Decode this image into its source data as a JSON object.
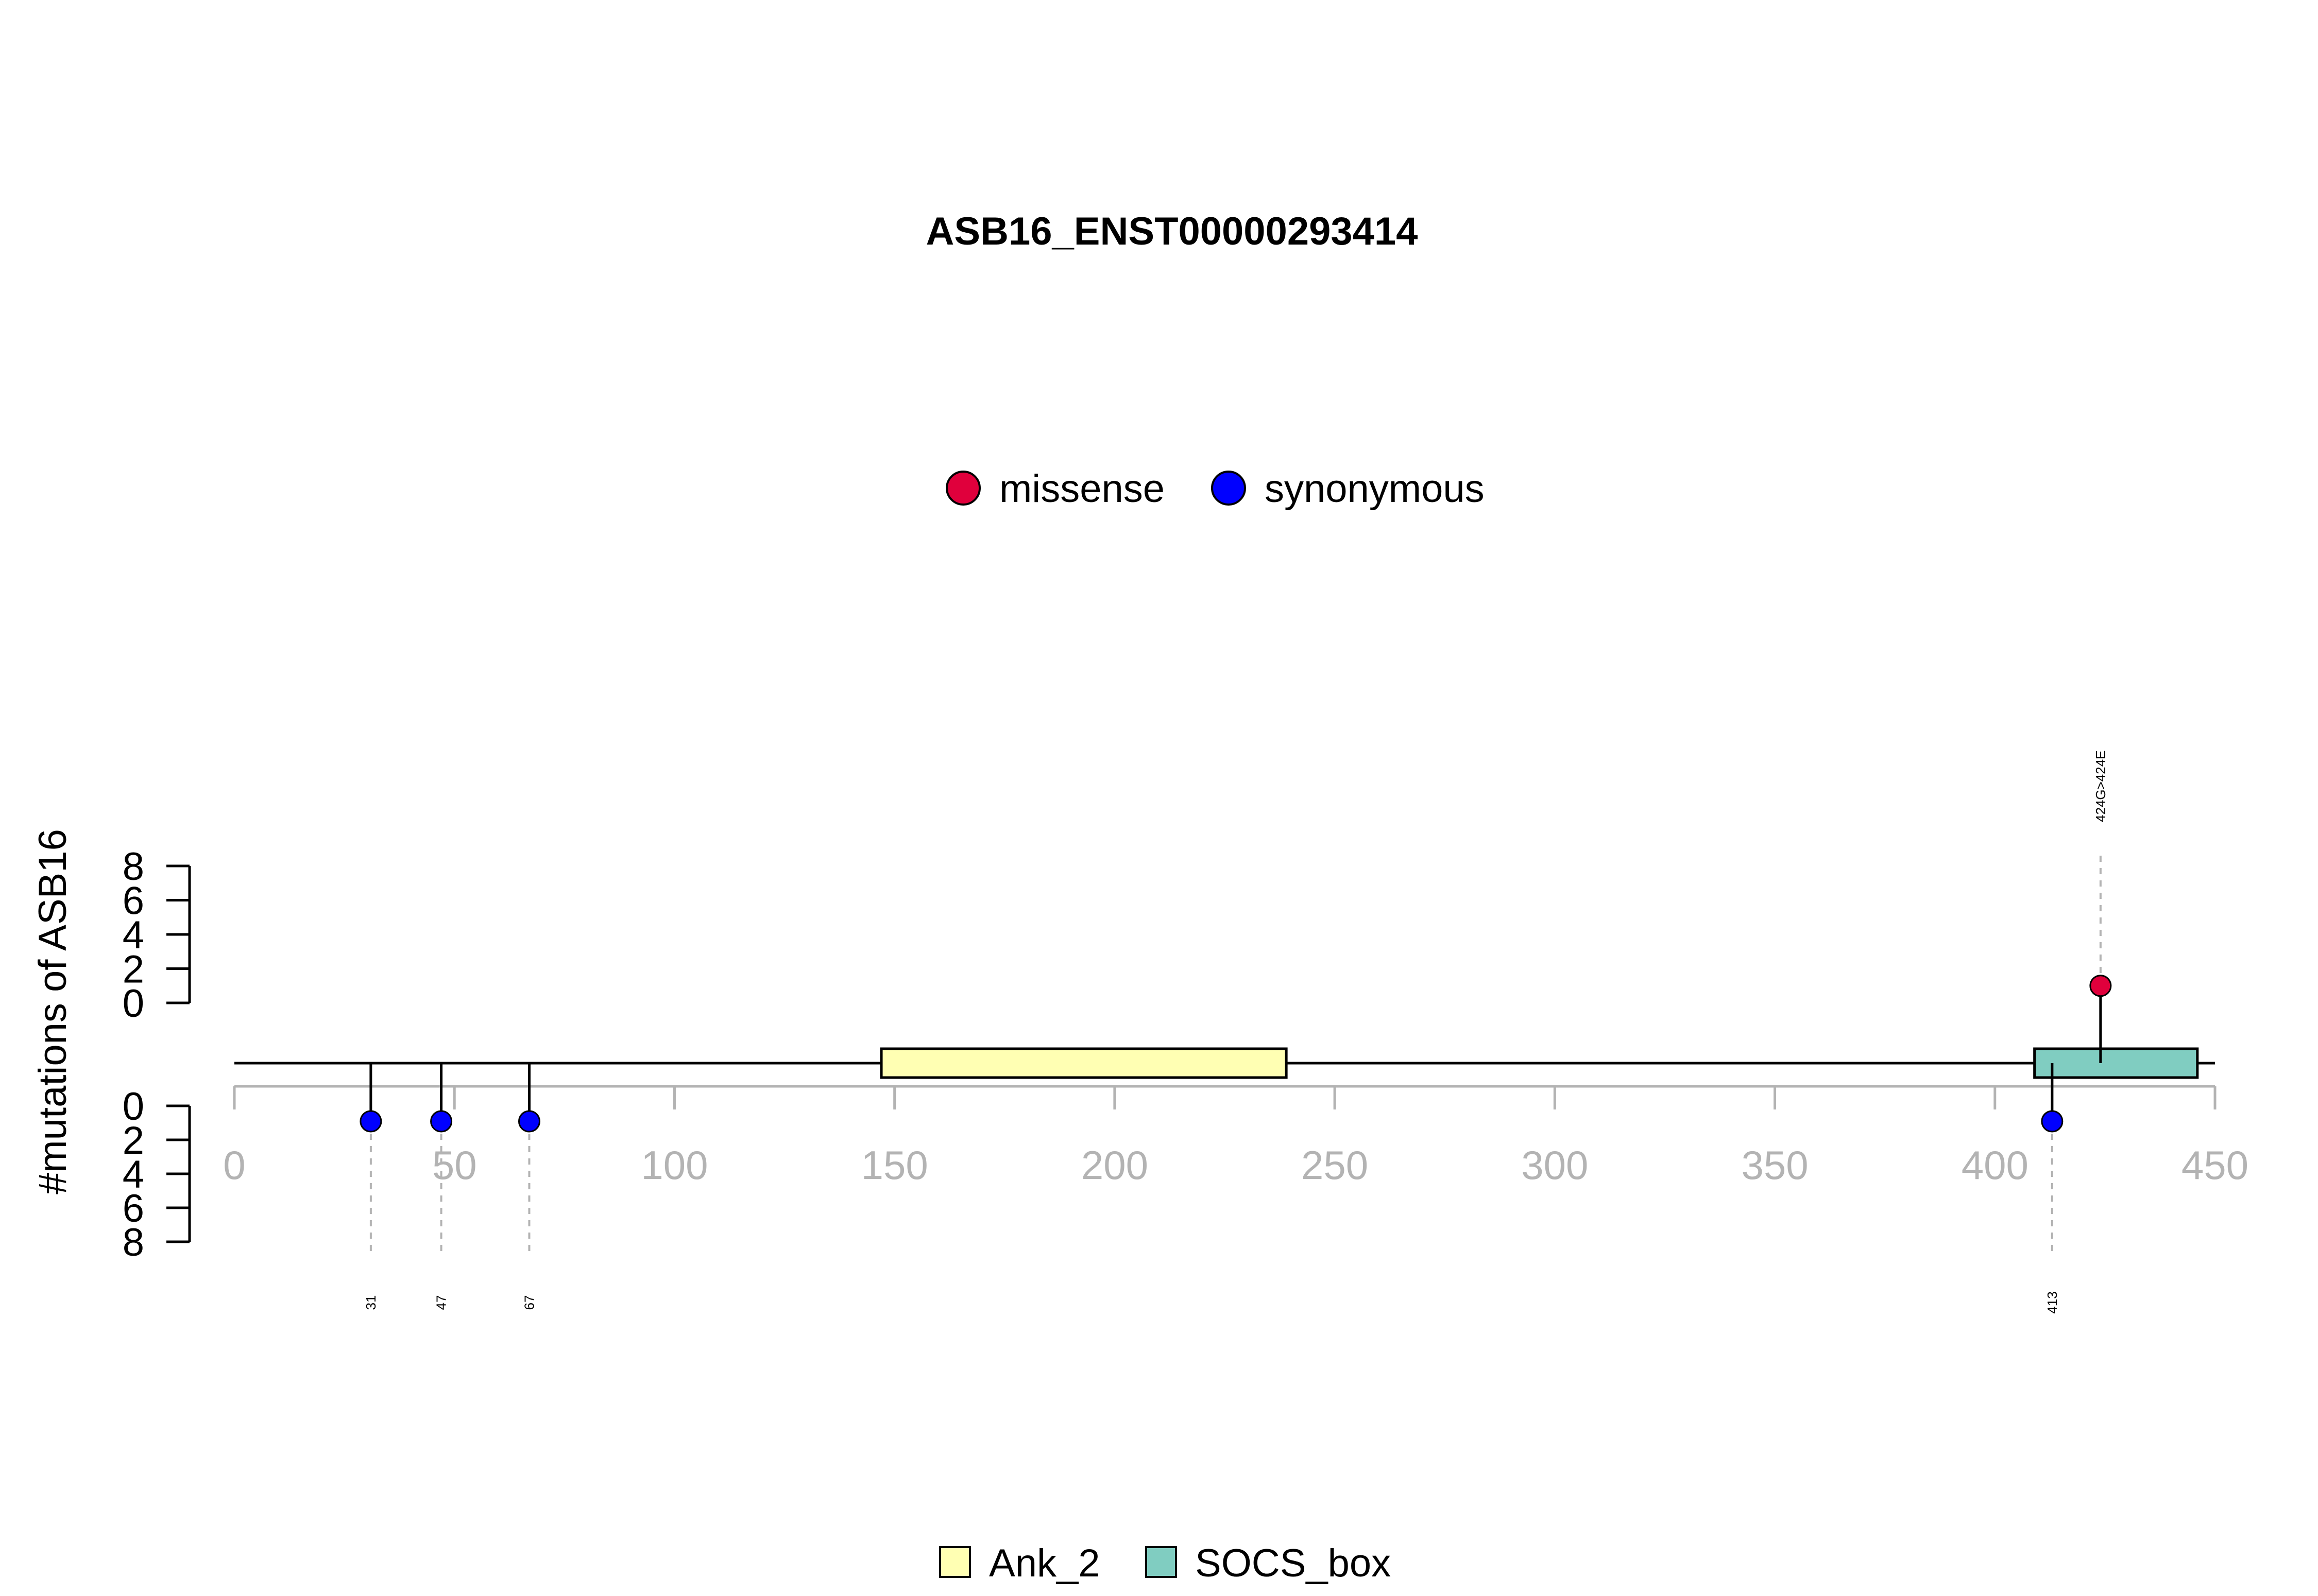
{
  "chart_data": {
    "type": "lollipop",
    "title": "ASB16_ENST00000293414",
    "ylabel": "#mutations of ASB16",
    "xlim": [
      0,
      450
    ],
    "x_ticks": [
      0,
      50,
      100,
      150,
      200,
      250,
      300,
      350,
      400,
      450
    ],
    "y_ticks": [
      0,
      2,
      4,
      6,
      8
    ],
    "y_range": [
      0,
      8
    ],
    "mutation_legend": [
      {
        "name": "missense",
        "color": "#e0003c"
      },
      {
        "name": "synonymous",
        "color": "#0000ff"
      }
    ],
    "domains": [
      {
        "name": "Ank_2",
        "start": 147,
        "end": 239,
        "color": "#ffffb3"
      },
      {
        "name": "SOCS_box",
        "start": 409,
        "end": 446,
        "color": "#80cdc1"
      }
    ],
    "mutations": [
      {
        "position": 31,
        "count": 1,
        "type": "synonymous",
        "label": "31"
      },
      {
        "position": 47,
        "count": 1,
        "type": "synonymous",
        "label": "47"
      },
      {
        "position": 67,
        "count": 1,
        "type": "synonymous",
        "label": "67"
      },
      {
        "position": 413,
        "count": 1,
        "type": "synonymous",
        "label": "413"
      },
      {
        "position": 424,
        "count": 1,
        "type": "missense",
        "label": "424G>424E"
      }
    ]
  }
}
